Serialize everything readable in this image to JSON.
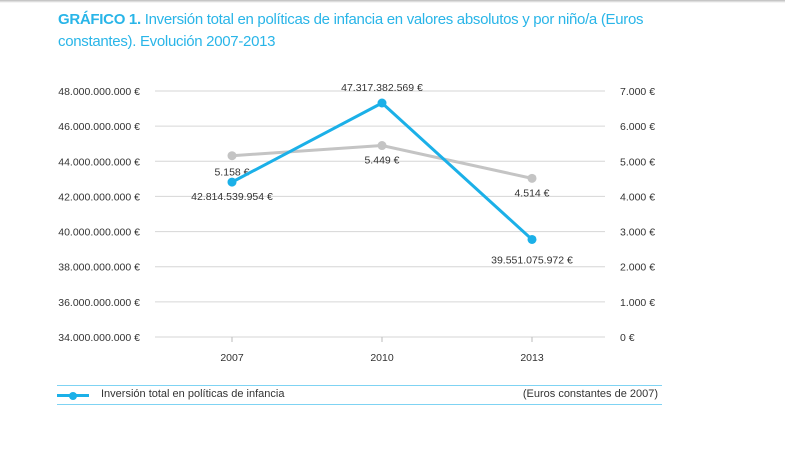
{
  "title": {
    "bold": "GRÁFICO 1.",
    "text": "Inversión total en políticas de infancia en valores absolutos y por niño/a (Euros constantes). Evolución 2007-2013"
  },
  "chart_data": {
    "type": "line",
    "categories": [
      "2007",
      "2010",
      "2013"
    ],
    "left_axis": {
      "range": [
        34000000000,
        48000000000
      ],
      "ticks": [
        "34.000.000.000 €",
        "36.000.000.000 €",
        "38.000.000.000 €",
        "40.000.000.000 €",
        "42.000.000.000 €",
        "44.000.000.000 €",
        "46.000.000.000 €",
        "48.000.000.000 €"
      ]
    },
    "right_axis": {
      "range": [
        0,
        7000
      ],
      "ticks": [
        "0 €",
        "1.000 €",
        "2.000 €",
        "3.000 €",
        "4.000 €",
        "5.000 €",
        "6.000 €",
        "7.000 €"
      ]
    },
    "grid": true,
    "series": [
      {
        "name": "Inversión total en políticas de infancia",
        "axis": "left",
        "color": "#1bb0e8",
        "values": [
          42814539954,
          47317382569,
          39551075972
        ],
        "labels": [
          "42.814.539.954 €",
          "47.317.382.569 €",
          "39.551.075.972 €"
        ]
      },
      {
        "axis": "right",
        "color": "#c4c4c4",
        "values": [
          5158,
          5449,
          4514
        ],
        "labels": [
          "5.158 €",
          "5.449 €",
          "4.514 €"
        ]
      }
    ],
    "legend_placement": "bottom",
    "note": "(Euros constantes de 2007)"
  }
}
